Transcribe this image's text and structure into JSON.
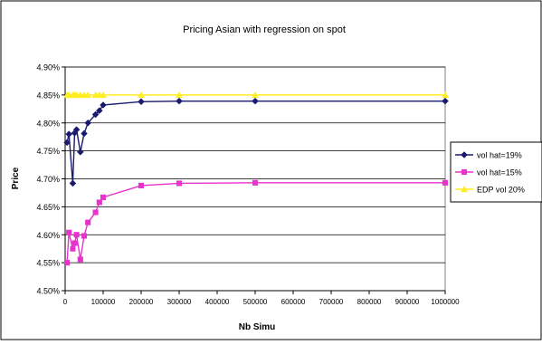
{
  "chart_data": {
    "type": "line",
    "title": "Pricing Asian with regression on spot",
    "xlabel": "Nb Simu",
    "ylabel": "Price",
    "xlim": [
      0,
      1000000
    ],
    "ylim": [
      4.5,
      4.9
    ],
    "xticks": [
      0,
      100000,
      200000,
      300000,
      400000,
      500000,
      600000,
      700000,
      800000,
      900000,
      1000000
    ],
    "xtick_labels": [
      "0",
      "100000",
      "200000",
      "300000",
      "400000",
      "500000",
      "600000",
      "700000",
      "800000",
      "900000",
      "1000000"
    ],
    "yticks": [
      4.5,
      4.55,
      4.6,
      4.65,
      4.7,
      4.75,
      4.8,
      4.85,
      4.9
    ],
    "ytick_labels": [
      "4.50%",
      "4.55%",
      "4.60%",
      "4.65%",
      "4.70%",
      "4.75%",
      "4.80%",
      "4.85%",
      "4.90%"
    ],
    "grid": "horizontal",
    "legend_position": "right",
    "series": [
      {
        "name": "vol hat=19%",
        "color": "#1a1a6e",
        "marker": "diamond",
        "x": [
          5000,
          10000,
          20000,
          25000,
          30000,
          40000,
          50000,
          60000,
          80000,
          90000,
          100000,
          200000,
          300000,
          500000,
          1000000
        ],
        "y": [
          4.765,
          4.78,
          4.692,
          4.782,
          4.788,
          4.748,
          4.781,
          4.8,
          4.815,
          4.822,
          4.832,
          4.838,
          4.839,
          4.839,
          4.839
        ]
      },
      {
        "name": "vol hat=15%",
        "color": "#e633cc",
        "marker": "square",
        "x": [
          5000,
          10000,
          20000,
          25000,
          30000,
          40000,
          50000,
          60000,
          80000,
          90000,
          100000,
          200000,
          300000,
          500000,
          1000000
        ],
        "y": [
          4.55,
          4.604,
          4.575,
          4.585,
          4.6,
          4.556,
          4.598,
          4.622,
          4.64,
          4.658,
          4.667,
          4.688,
          4.692,
          4.693,
          4.693
        ]
      },
      {
        "name": "EDP vol 20%",
        "color": "#ffee22",
        "marker": "triangle",
        "x": [
          5000,
          10000,
          20000,
          25000,
          30000,
          40000,
          50000,
          60000,
          80000,
          90000,
          100000,
          200000,
          300000,
          500000,
          1000000
        ],
        "y": [
          4.85,
          4.85,
          4.85,
          4.85,
          4.85,
          4.85,
          4.85,
          4.85,
          4.85,
          4.85,
          4.85,
          4.85,
          4.85,
          4.85,
          4.85
        ]
      }
    ]
  }
}
